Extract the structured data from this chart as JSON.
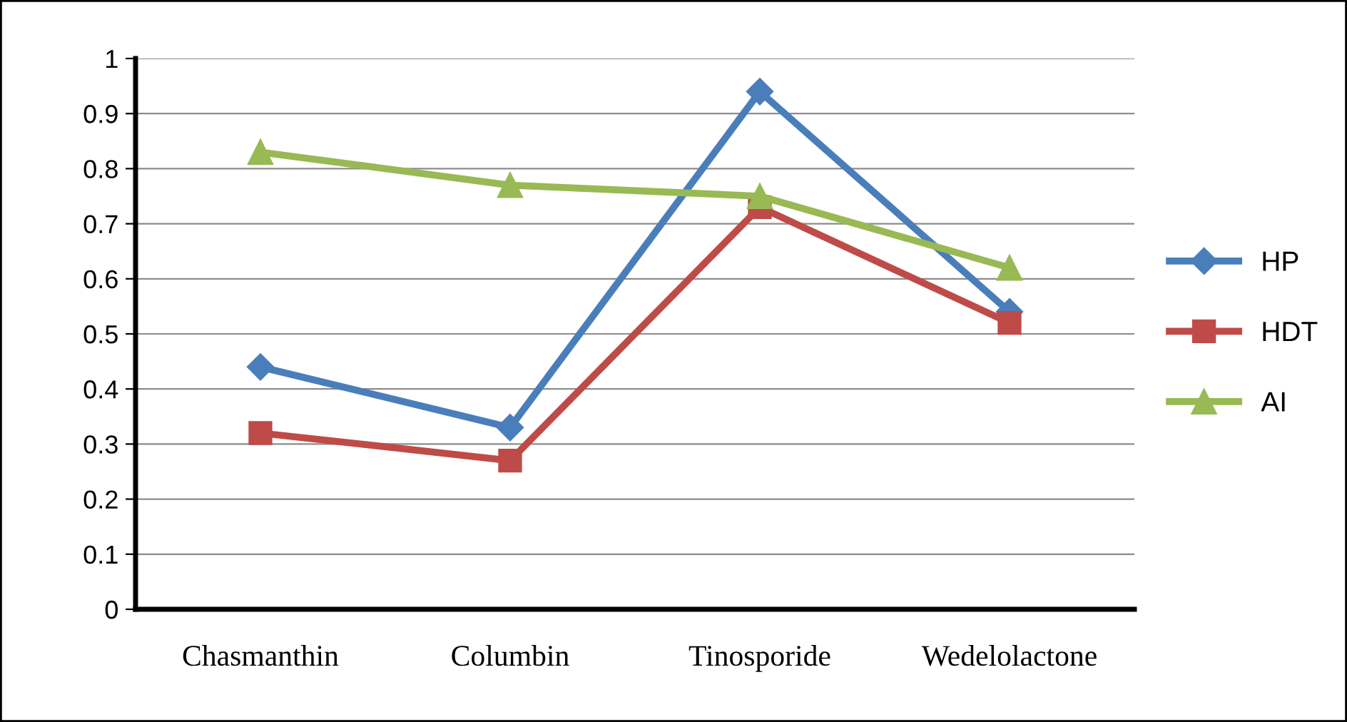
{
  "chart_data": {
    "type": "line",
    "categories": [
      "Chasmanthin",
      "Columbin",
      "Tinosporide",
      "Wedelolactone"
    ],
    "series": [
      {
        "name": "HP",
        "color": "#4a7ebb",
        "marker": "diamond",
        "values": [
          0.44,
          0.33,
          0.94,
          0.54
        ]
      },
      {
        "name": "HDT",
        "color": "#be4b48",
        "marker": "square",
        "values": [
          0.32,
          0.27,
          0.73,
          0.52
        ]
      },
      {
        "name": "AI",
        "color": "#98b954",
        "marker": "triangle",
        "values": [
          0.83,
          0.77,
          0.75,
          0.62
        ]
      }
    ],
    "ylim": [
      0,
      1
    ],
    "yticks": [
      0,
      0.1,
      0.2,
      0.3,
      0.4,
      0.5,
      0.6,
      0.7,
      0.8,
      0.9,
      1
    ],
    "grid": "y",
    "legend": "right",
    "line_style": "solid"
  }
}
